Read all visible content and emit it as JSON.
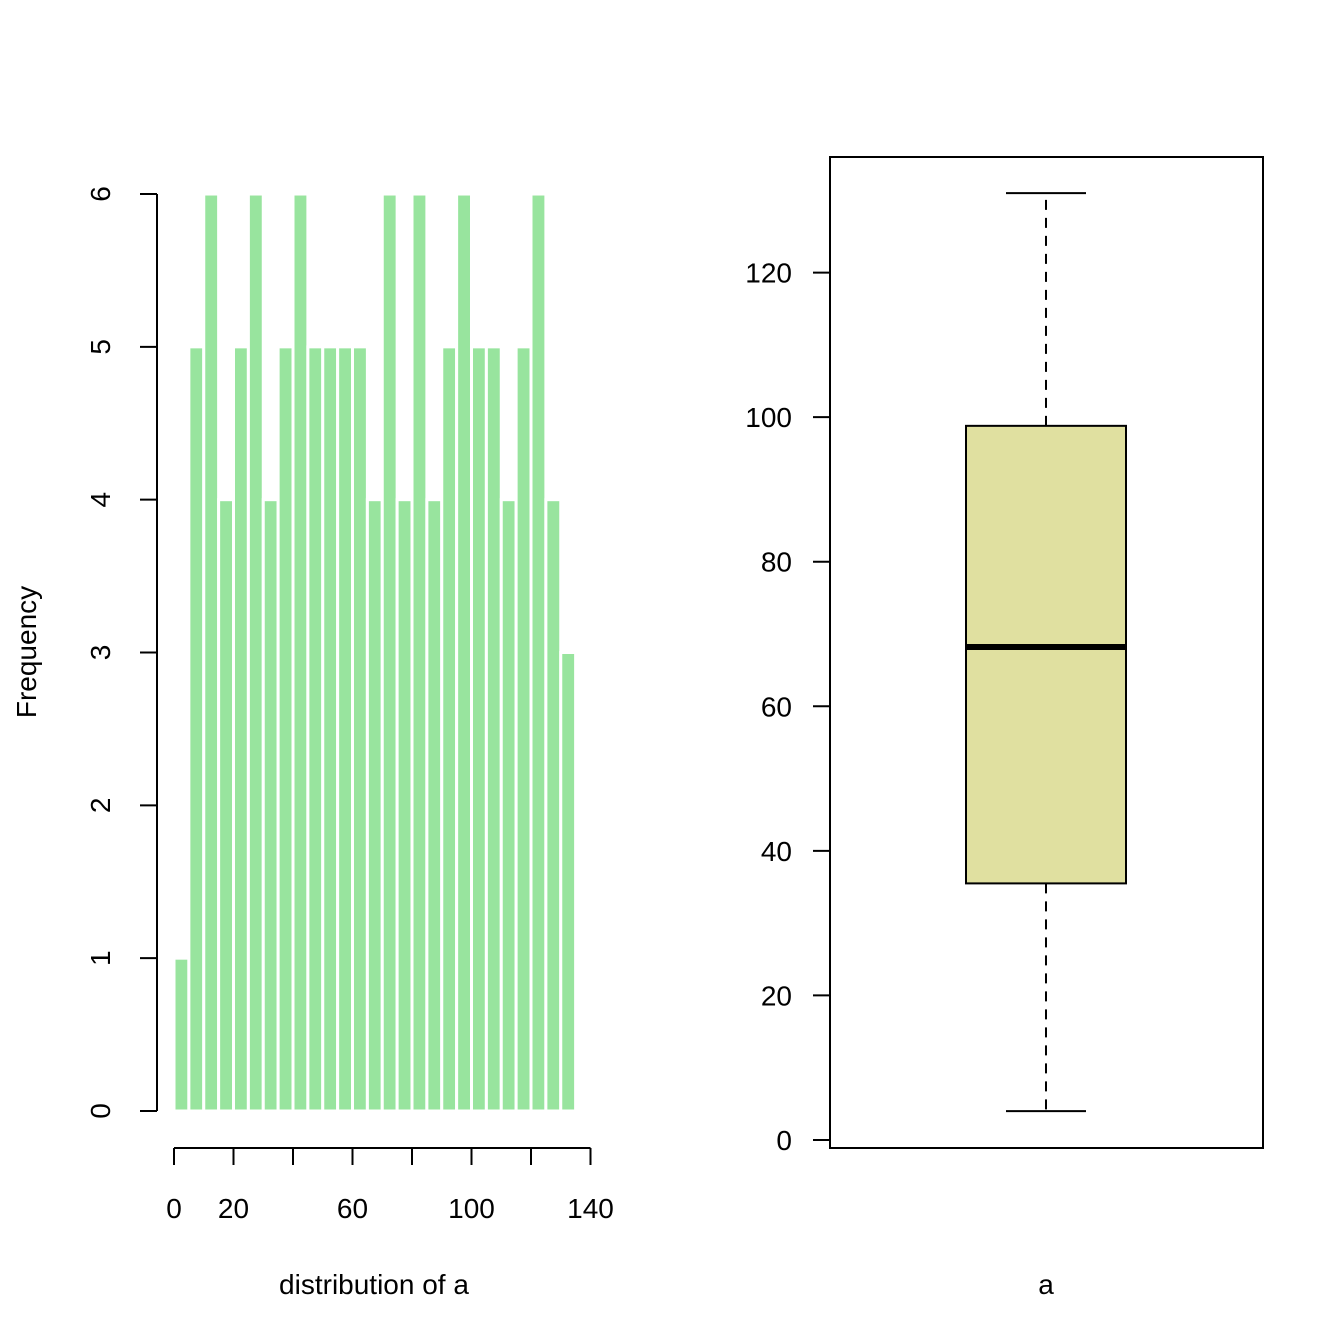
{
  "chart_data": [
    {
      "type": "bar",
      "subtype": "histogram",
      "xlabel": "distribution of a",
      "ylabel": "Frequency",
      "bin_width": 5,
      "bin_start": 0,
      "values": [
        1,
        5,
        6,
        4,
        5,
        6,
        4,
        5,
        6,
        5,
        5,
        5,
        5,
        4,
        6,
        4,
        6,
        4,
        5,
        6,
        5,
        5,
        4,
        5,
        6,
        4,
        3
      ],
      "xlim": [
        0,
        140
      ],
      "ylim": [
        0,
        6
      ],
      "xticks": [
        0,
        20,
        40,
        60,
        80,
        100,
        120,
        140
      ],
      "xtick_labels": [
        "0",
        "20",
        "",
        "60",
        "",
        "100",
        "",
        "140"
      ],
      "yticks": [
        0,
        1,
        2,
        3,
        4,
        5,
        6
      ],
      "ytick_labels": [
        "0",
        "1",
        "2",
        "3",
        "4",
        "5",
        "6"
      ],
      "color": "#98E49E",
      "grid": false
    },
    {
      "type": "box",
      "xlabel": "a",
      "category": "a",
      "stats": {
        "min": 4,
        "q1": 35.5,
        "median": 68.2,
        "q3": 98.8,
        "max": 131
      },
      "ylim": [
        0,
        140
      ],
      "yticks": [
        0,
        20,
        40,
        60,
        80,
        100,
        120
      ],
      "ytick_labels": [
        "0",
        "20",
        "40",
        "60",
        "80",
        "100",
        "120"
      ],
      "color": "#E0E0A0",
      "grid": false
    }
  ]
}
